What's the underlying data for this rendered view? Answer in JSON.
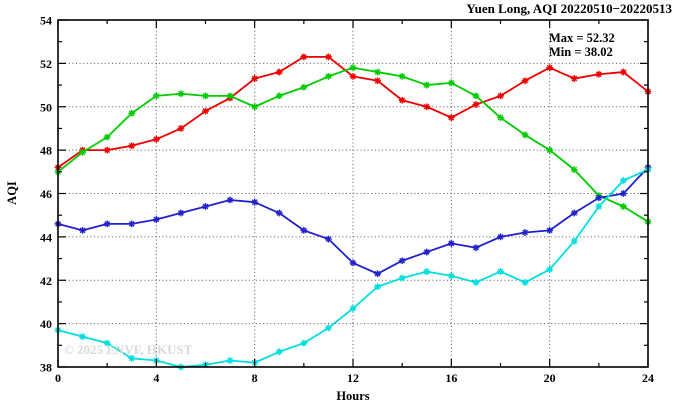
{
  "title": "Yuen Long, AQI 20220510−20220513",
  "annotations": {
    "max_label": "Max = 52.32",
    "min_label": "Min = 38.02"
  },
  "watermark": "© 2025 ENVF, HKUST",
  "chart_data": {
    "type": "line",
    "title": "Yuen Long, AQI 20220510−20220513",
    "xlabel": "Hours",
    "ylabel": "AQI",
    "xlim": [
      0,
      24
    ],
    "ylim": [
      38,
      54
    ],
    "x_major_ticks": [
      0,
      4,
      8,
      12,
      16,
      20,
      24
    ],
    "x_minor_ticks": [
      2,
      6,
      10,
      14,
      18,
      22
    ],
    "y_major_ticks": [
      38,
      40,
      42,
      44,
      46,
      48,
      50,
      52,
      54
    ],
    "y_minor_ticks": [
      39,
      41,
      43,
      45,
      47,
      49,
      51,
      53
    ],
    "grid": true,
    "legend_position": "none",
    "marker": "asterisk",
    "max_value": 52.32,
    "min_value": 38.02,
    "x": [
      0,
      1,
      2,
      3,
      4,
      5,
      6,
      7,
      8,
      9,
      10,
      11,
      12,
      13,
      14,
      15,
      16,
      17,
      18,
      19,
      20,
      21,
      22,
      23,
      24
    ],
    "series": [
      {
        "name": "series-red",
        "color": "#ee0000",
        "values": [
          47.2,
          48.0,
          48.0,
          48.2,
          48.5,
          49.0,
          49.8,
          50.4,
          51.3,
          51.6,
          52.3,
          52.3,
          51.4,
          51.2,
          50.3,
          50.0,
          49.5,
          50.1,
          50.5,
          51.2,
          51.8,
          51.3,
          51.5,
          51.6,
          50.7
        ]
      },
      {
        "name": "series-green",
        "color": "#00cc00",
        "values": [
          47.0,
          47.9,
          48.6,
          49.7,
          50.5,
          50.6,
          50.5,
          50.5,
          50.0,
          50.5,
          50.9,
          51.4,
          51.8,
          51.6,
          51.4,
          51.0,
          51.1,
          50.5,
          49.5,
          48.7,
          48.0,
          47.1,
          45.9,
          45.4,
          44.7
        ]
      },
      {
        "name": "series-blue",
        "color": "#2222cc",
        "values": [
          44.6,
          44.3,
          44.6,
          44.6,
          44.8,
          45.1,
          45.4,
          45.7,
          45.6,
          45.1,
          44.3,
          43.9,
          42.8,
          42.3,
          42.9,
          43.3,
          43.7,
          43.5,
          44.0,
          44.2,
          44.3,
          45.1,
          45.8,
          46.0,
          47.2
        ]
      },
      {
        "name": "series-cyan",
        "color": "#00dede",
        "values": [
          39.7,
          39.4,
          39.1,
          38.4,
          38.3,
          38.0,
          38.1,
          38.3,
          38.2,
          38.7,
          39.1,
          39.8,
          40.7,
          41.7,
          42.1,
          42.4,
          42.2,
          41.9,
          42.4,
          41.9,
          42.5,
          43.8,
          45.4,
          46.6,
          47.1
        ]
      }
    ]
  }
}
